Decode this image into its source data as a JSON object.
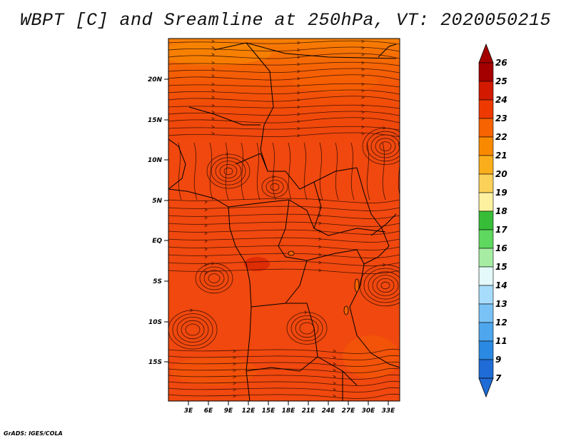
{
  "title": "WBPT [C] and Sreamline at 250hPa, VT: 2020050215",
  "credit": "GrADS: IGES/COLA",
  "map": {
    "lat_labels": [
      "20N",
      "15N",
      "10N",
      "5N",
      "EQ",
      "5S",
      "10S",
      "15S"
    ],
    "lon_labels": [
      "3E",
      "6E",
      "9E",
      "12E",
      "15E",
      "18E",
      "21E",
      "24E",
      "27E",
      "30E",
      "33E"
    ],
    "fill_color": "#f04a10"
  },
  "colorbar": {
    "labels": [
      "26",
      "25",
      "24",
      "23",
      "22",
      "21",
      "20",
      "19",
      "18",
      "17",
      "16",
      "15",
      "14",
      "13",
      "12",
      "11",
      "9",
      "7"
    ],
    "colors": [
      "#a50000",
      "#d21a00",
      "#ee3a00",
      "#f66300",
      "#f98a00",
      "#fbae1c",
      "#fcd159",
      "#fdf1a0",
      "#37bd37",
      "#5ed85e",
      "#a6eda3",
      "#e4f9f9",
      "#a8dcfb",
      "#79c2f5",
      "#4ea6ee",
      "#2a89e2",
      "#1f6cd6"
    ]
  }
}
